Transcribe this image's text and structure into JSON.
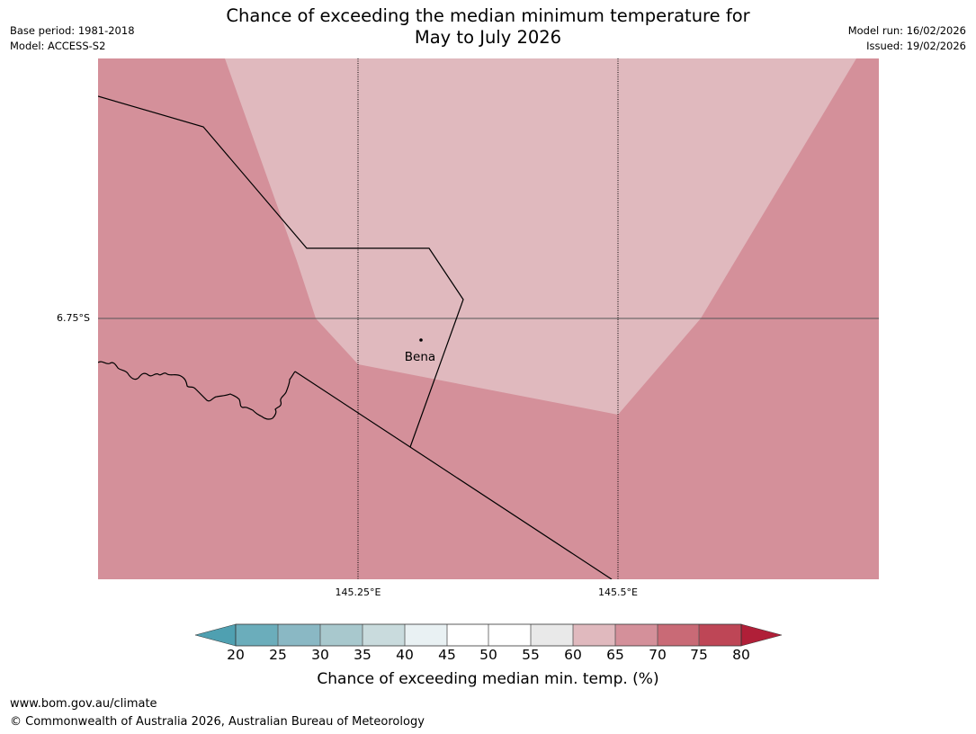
{
  "title": {
    "line1": "Chance of exceeding the median minimum temperature for",
    "line2": "May to July 2026"
  },
  "meta": {
    "base_period": "Base period: 1981-2018",
    "model": "Model: ACCESS-S2",
    "model_run": "Model run: 16/02/2026",
    "issued": "Issued: 19/02/2026"
  },
  "map": {
    "latitude_label": "6.75°S",
    "longitude_labels": [
      "145.25°E",
      "145.5°E"
    ],
    "place_label": "Bena",
    "colors": {
      "band_65_70": "#d4909a",
      "band_60_65": "#e0b9be",
      "boundary": "#000000",
      "gridline": "#000000"
    }
  },
  "colorbar": {
    "ticks": [
      "20",
      "25",
      "30",
      "35",
      "40",
      "45",
      "50",
      "55",
      "60",
      "65",
      "70",
      "75",
      "80"
    ],
    "colors": {
      "below_20": "#4fa0b1",
      "20_25": "#6badbb",
      "25_30": "#8ab8c4",
      "30_35": "#a8c8cd",
      "35_40": "#c9dbdd",
      "40_45": "#e9f1f3",
      "45_50": "#ffffff",
      "50_55": "#ffffff",
      "55_60": "#e9e9e9",
      "60_65": "#e0b9be",
      "65_70": "#d4909a",
      "70_75": "#c96a76",
      "75_80": "#be4656",
      "above_80": "#b01f38"
    },
    "title": "Chance of exceeding median min. temp. (%)"
  },
  "footer": {
    "website": "www.bom.gov.au/climate",
    "copyright": "© Commonwealth of Australia 2026, Australian Bureau of Meteorology"
  }
}
